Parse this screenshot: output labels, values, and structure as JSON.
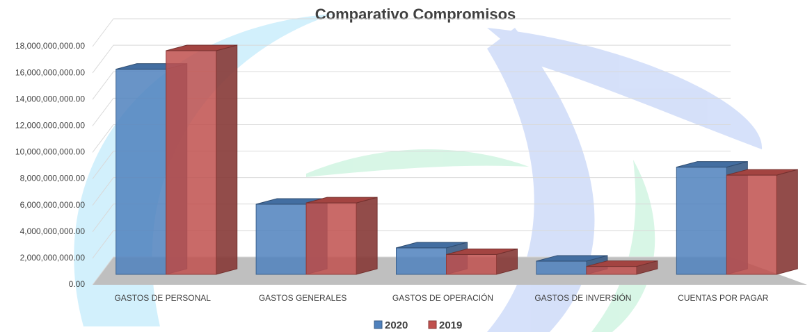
{
  "chart_data": {
    "type": "bar3d",
    "title": "Comparativo Compromisos",
    "categories": [
      "GASTOS DE PERSONAL",
      "GASTOS GENERALES",
      "GASTOS DE OPERACIÓN",
      "GASTOS DE INVERSIÓN",
      "CUENTAS POR PAGAR"
    ],
    "series": [
      {
        "name": "2020",
        "color": "#4f81bd",
        "values": [
          15500000000,
          5300000000,
          2000000000,
          1000000000,
          8100000000
        ]
      },
      {
        "name": "2019",
        "color": "#c0504d",
        "values": [
          16900000000,
          5400000000,
          1500000000,
          600000000,
          7500000000
        ]
      }
    ],
    "ylim": [
      0,
      18000000000
    ],
    "yticks": [
      {
        "value": 0,
        "label": "0.00"
      },
      {
        "value": 2000000000,
        "label": "2,000,000,000.00"
      },
      {
        "value": 4000000000,
        "label": "4,000,000,000.00"
      },
      {
        "value": 6000000000,
        "label": "6,000,000,000.00"
      },
      {
        "value": 8000000000,
        "label": "8,000,000,000.00"
      },
      {
        "value": 10000000000,
        "label": "10,000,000,000.00"
      },
      {
        "value": 12000000000,
        "label": "12,000,000,000.00"
      },
      {
        "value": 14000000000,
        "label": "14,000,000,000.00"
      },
      {
        "value": 16000000000,
        "label": "16,000,000,000.00"
      },
      {
        "value": 18000000000,
        "label": "18,000,000,000.00"
      }
    ],
    "grid": true,
    "legend": "bottom"
  }
}
